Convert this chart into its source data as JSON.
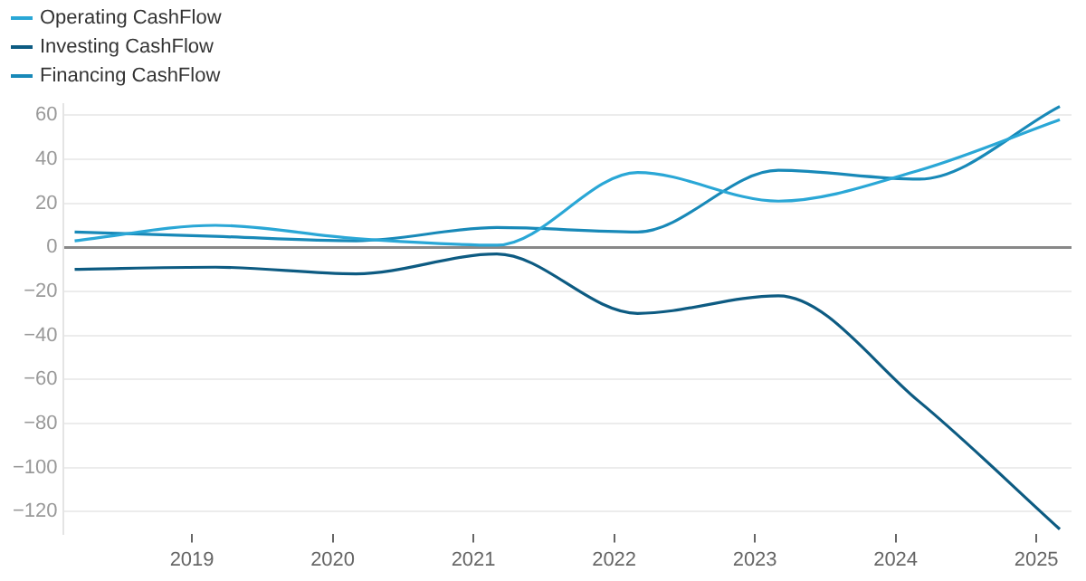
{
  "chart_data": {
    "type": "line",
    "x": [
      "2018-03",
      "2019-03",
      "2020-03",
      "2021-03",
      "2022-03",
      "2023-03",
      "2024-03",
      "2025-03"
    ],
    "series": [
      {
        "name": "Operating CashFlow",
        "color": "#2aa7d6",
        "values": [
          3,
          10,
          4,
          1,
          34,
          21,
          35,
          58
        ]
      },
      {
        "name": "Investing CashFlow",
        "color": "#0d5b82",
        "values": [
          -10,
          -9,
          -12,
          -3,
          -30,
          -22,
          -70,
          -128
        ]
      },
      {
        "name": "Financing CashFlow",
        "color": "#1889b8",
        "values": [
          7,
          5,
          3,
          9,
          7,
          35,
          31,
          64
        ]
      }
    ],
    "xlim": [
      "2018-02",
      "2025-04"
    ],
    "xticks": [
      "2019",
      "2020",
      "2021",
      "2022",
      "2023",
      "2024",
      "2025"
    ],
    "ylim": [
      -130,
      65
    ],
    "yticks": [
      -120,
      -100,
      -80,
      -60,
      -40,
      -20,
      0,
      20,
      40,
      60
    ],
    "grid": "y",
    "legend": "top left",
    "marker": "none",
    "line_style": "solid"
  }
}
